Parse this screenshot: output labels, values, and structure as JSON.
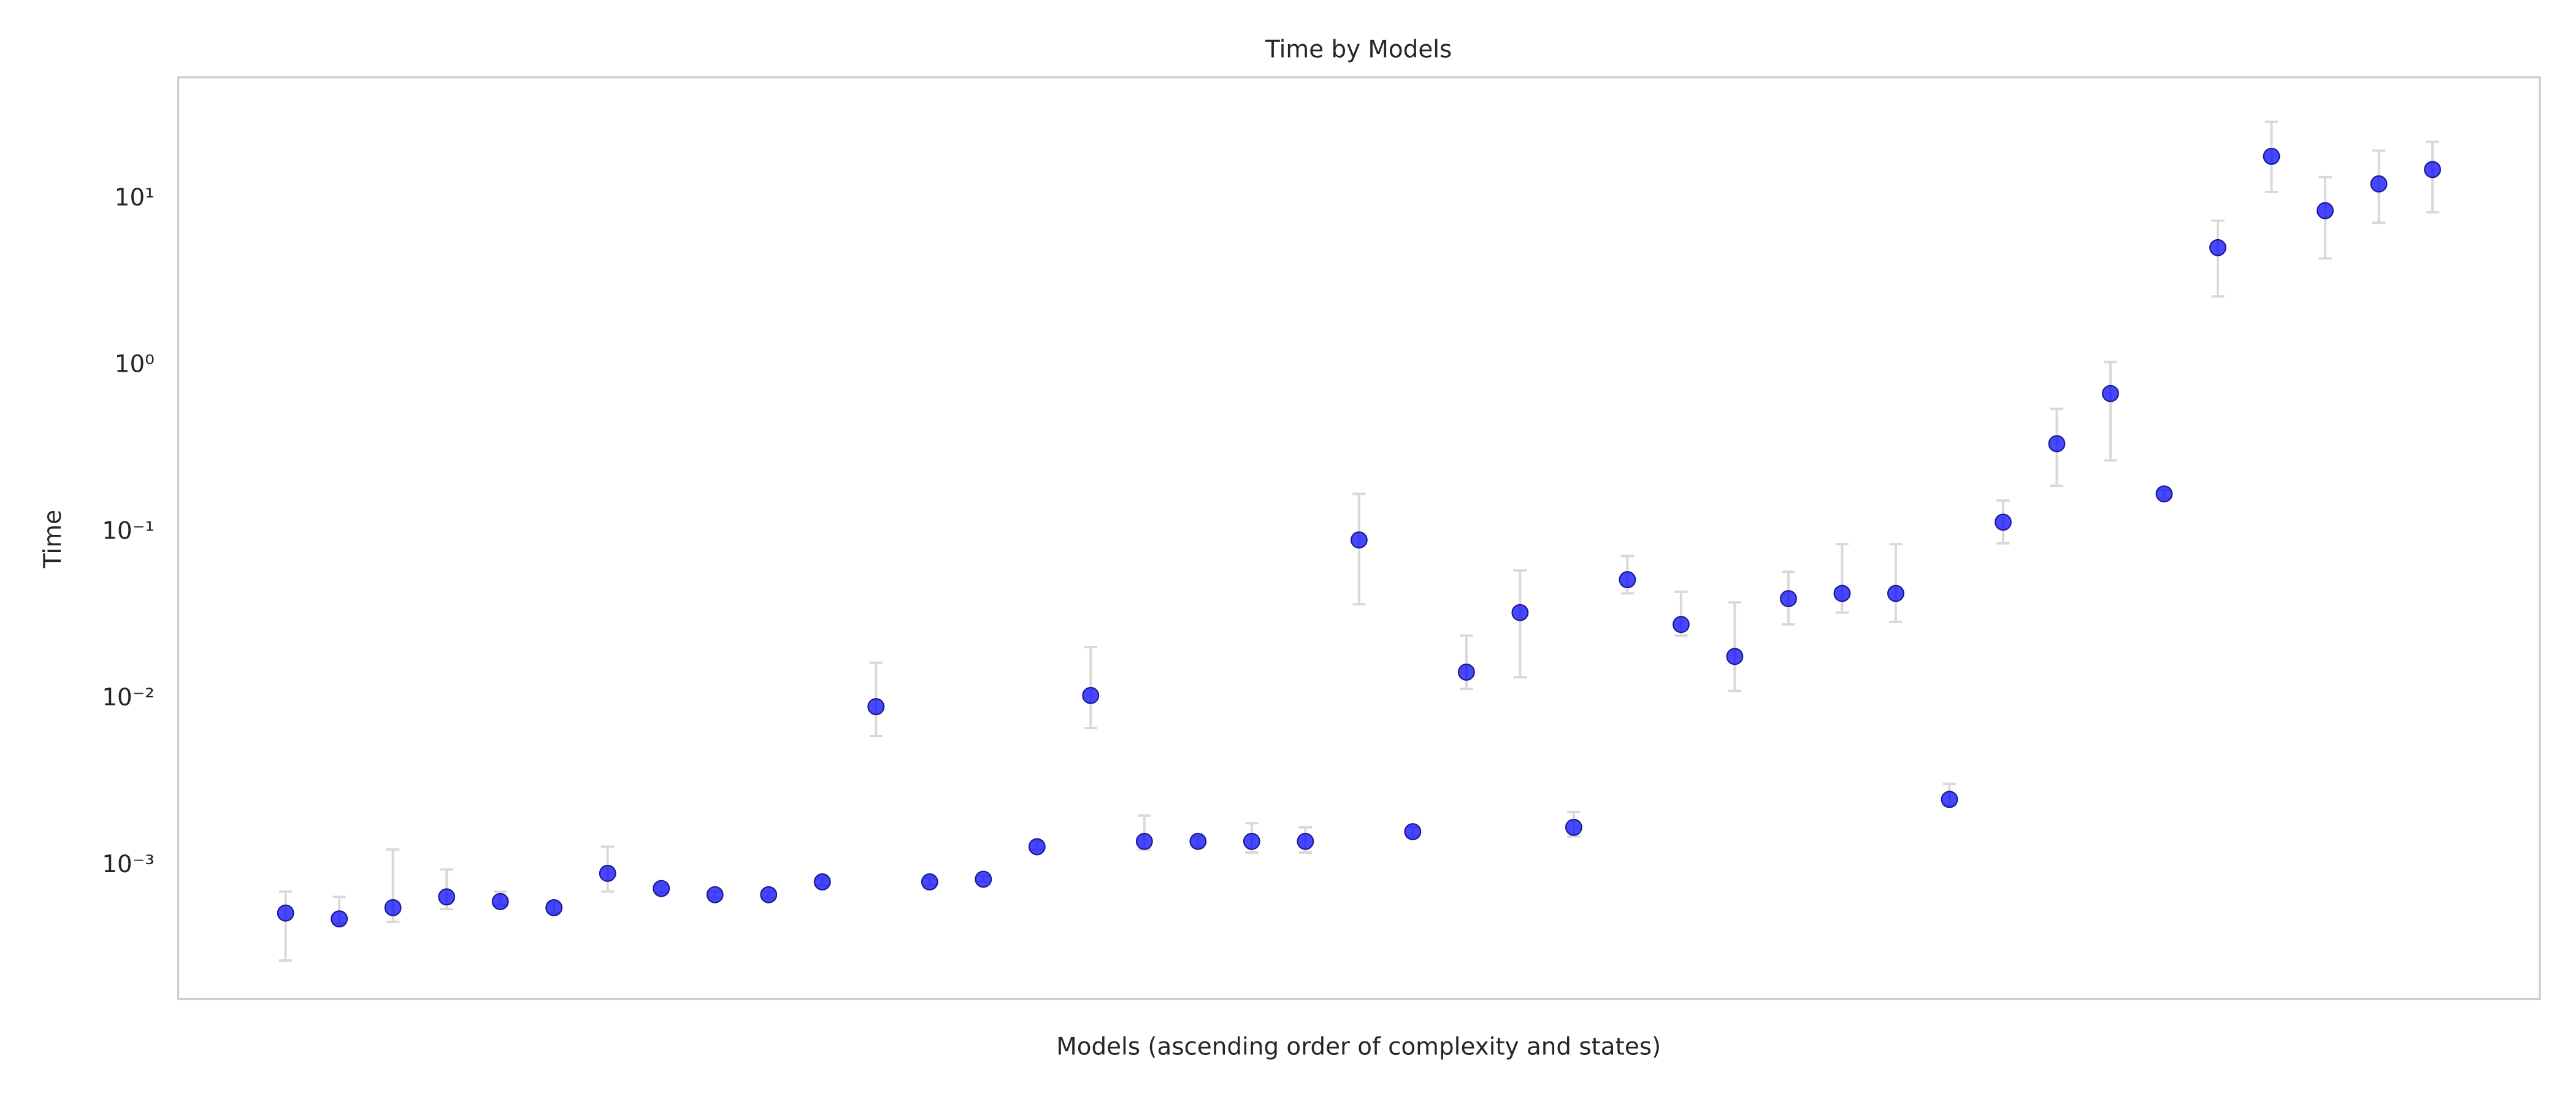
{
  "chart_data": {
    "type": "scatter",
    "title": "Time by Models",
    "x_label": "Models (ascending order of complexity and states)",
    "y_label": "Time",
    "log_scale": true,
    "grid": false,
    "color": "#0000ff",
    "error_color": "#d9d9d9",
    "categories": [
      null,
      null,
      null,
      null,
      null,
      null,
      null,
      null,
      null,
      null,
      null,
      null,
      null,
      null,
      null,
      null,
      null,
      null,
      null,
      null,
      null,
      null,
      null,
      null,
      null,
      null,
      null,
      null,
      null,
      null,
      null,
      null,
      null,
      null,
      null,
      null,
      null,
      null,
      null,
      null,
      null
    ],
    "values": [
      0.00052,
      0.00048,
      0.00056,
      0.00065,
      0.00061,
      0.00056,
      0.0009,
      0.00073,
      0.00067,
      0.00067,
      0.0008,
      0.009,
      0.0008,
      0.00083,
      0.0013,
      0.0105,
      0.0014,
      0.0014,
      0.0014,
      0.0014,
      0.09,
      0.0016,
      0.0145,
      0.033,
      0.0017,
      0.052,
      0.028,
      0.018,
      0.04,
      0.043,
      0.043,
      0.0025,
      0.115,
      0.34,
      0.68,
      0.17,
      5.1,
      18,
      8.5,
      12.3,
      15
    ],
    "error_low": [
      0.00027,
      0.00045,
      0.00046,
      0.00055,
      0.00058,
      0.00052,
      0.0007,
      0.00069,
      0.00064,
      0.00064,
      0.00076,
      0.006,
      0.00076,
      0.0008,
      0.00125,
      0.0067,
      0.00125,
      0.0013,
      0.0012,
      0.0012,
      0.037,
      0.0015,
      0.0115,
      0.0135,
      0.0015,
      0.043,
      0.024,
      0.0112,
      0.028,
      0.033,
      0.029,
      0.0023,
      0.086,
      0.19,
      0.27,
      0.16,
      2.6,
      11,
      4.4,
      7.2,
      8.3
    ],
    "error_high": [
      0.0007,
      0.00065,
      0.00125,
      0.00095,
      0.0007,
      0.0006,
      0.0013,
      0.00077,
      0.0007,
      0.0007,
      0.00085,
      0.0165,
      0.00085,
      0.00087,
      0.0014,
      0.0205,
      0.002,
      0.0015,
      0.0018,
      0.0017,
      0.17,
      0.0017,
      0.024,
      0.059,
      0.0021,
      0.072,
      0.044,
      0.038,
      0.058,
      0.085,
      0.085,
      0.0031,
      0.155,
      0.55,
      1.05,
      0.18,
      7.4,
      29,
      13.5,
      19.5,
      22
    ],
    "ylim": [
      0.000159,
      53.7
    ],
    "yticks": [
      {
        "value": 0.001,
        "label": "10⁻³"
      },
      {
        "value": 0.01,
        "label": "10⁻²"
      },
      {
        "value": 0.1,
        "label": "10⁻¹"
      },
      {
        "value": 1,
        "label": "10⁰"
      },
      {
        "value": 10,
        "label": "10¹"
      }
    ]
  }
}
